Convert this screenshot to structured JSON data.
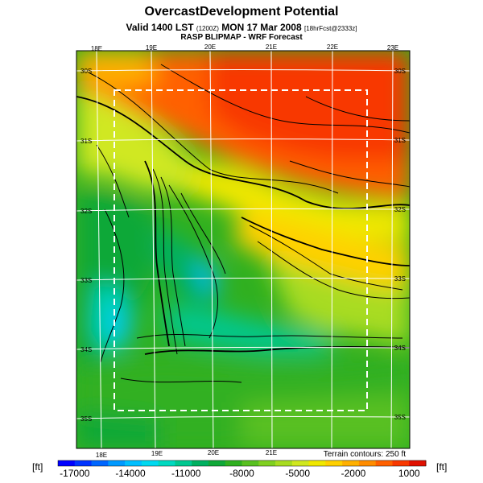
{
  "header": {
    "title": "OvercastDevelopment Potential",
    "valid_prefix": "Valid 1400 LST",
    "valid_small": "(1200Z)",
    "valid_date": "MON 17 Mar 2008",
    "valid_suffix": "[18hrFcst@2333z]",
    "model": "RASP BLIPMAP - WRF Forecast"
  },
  "map": {
    "top_lon_labels": [
      "18E",
      "19E",
      "20E",
      "21E",
      "22E",
      "23E"
    ],
    "bottom_lon_labels": [
      "18E",
      "19E",
      "20E",
      "21E"
    ],
    "left_lat_labels": [
      "30S",
      "31S",
      "32S",
      "33S",
      "34S",
      "35S"
    ],
    "right_lat_labels": [
      "30S",
      "31S",
      "32S",
      "33S",
      "34S",
      "35S"
    ]
  },
  "legend": {
    "terrain_note": "Terrain contours: 250 ft",
    "unit_left": "[ft]",
    "unit_right": "[ft]",
    "tick_labels": [
      "-17000",
      "-14000",
      "-11000",
      "-8000",
      "-5000",
      "-2000",
      "1000"
    ],
    "colors": [
      "#0000ff",
      "#0033ff",
      "#0066ff",
      "#0099ff",
      "#00bfff",
      "#00d9f0",
      "#00d9c0",
      "#00c890",
      "#00b060",
      "#10a838",
      "#30b020",
      "#58c020",
      "#80d020",
      "#a8dc20",
      "#d0e820",
      "#f0e800",
      "#ffd000",
      "#ffb000",
      "#ff8c00",
      "#ff6000",
      "#f83800",
      "#e01000"
    ]
  }
}
